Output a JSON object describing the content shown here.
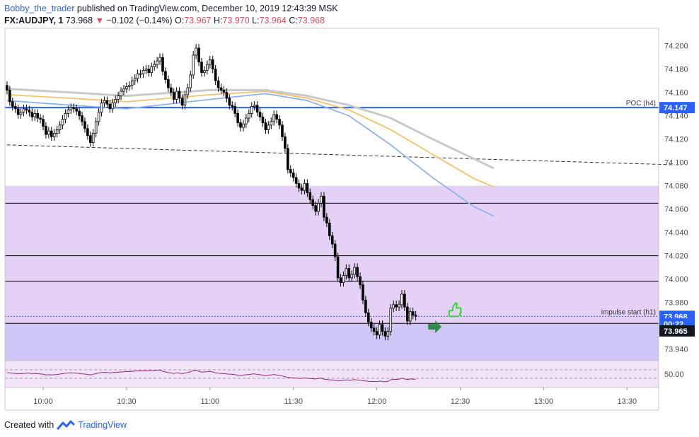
{
  "header": {
    "author": "Bobby_the_trader",
    "published": "published on TradingView.com, December 10, 2019 12:43:39 MSK",
    "symbol": "FX:AUDJPY, 1",
    "last": "73.968",
    "change": "−0.102 (−0.14%)",
    "o_label": "O:",
    "o_value": "73.967",
    "h_label": "H:",
    "h_value": "73.970",
    "l_label": "L:",
    "l_value": "73.964",
    "c_label": "C:",
    "c_value": "73.968"
  },
  "footer": {
    "created_with": "Created with",
    "brand": "TradingView"
  },
  "colors": {
    "up": "#ffffff",
    "down": "#000000",
    "wick": "#000000",
    "poc": "#2962ff",
    "zone": "#e0c8f5",
    "zone_lower": "#cbc4f5",
    "ma_grey": "#c9c9c9",
    "ma_orange": "#f5c26b",
    "ma_blue": "#8fb3ee",
    "rsi": "#8a2b7a",
    "tag_blue": "#2962ff",
    "tag_dark": "#131722",
    "thumb": "#35d82e",
    "arrow": "#2e8b4a"
  },
  "chart_data": {
    "type": "candlestick",
    "symbol": "FX:AUDJPY",
    "interval": "1",
    "ylim": [
      73.93,
      74.215
    ],
    "y_ticks": [
      "74.200",
      "74.180",
      "74.160",
      "74.140",
      "74.120",
      "74.100",
      "74.080",
      "74.060",
      "74.040",
      "74.020",
      "74.000",
      "73.980",
      "73.960",
      "73.940"
    ],
    "x_ticks": [
      {
        "label": "10:00",
        "min": 0
      },
      {
        "label": "10:30",
        "min": 30
      },
      {
        "label": "11:00",
        "min": 60
      },
      {
        "label": "11:30",
        "min": 90
      },
      {
        "label": "12:00",
        "min": 120
      },
      {
        "label": "12:30",
        "min": 150
      },
      {
        "label": "13:00",
        "min": 180
      },
      {
        "label": "13:30",
        "min": 210
      }
    ],
    "start_min": -13,
    "closes": [
      74.162,
      74.152,
      74.148,
      74.146,
      74.141,
      74.143,
      74.146,
      74.145,
      74.143,
      74.139,
      74.142,
      74.138,
      74.137,
      74.131,
      74.124,
      74.127,
      74.122,
      74.125,
      74.128,
      74.132,
      74.137,
      74.142,
      74.145,
      74.147,
      74.146,
      74.144,
      74.14,
      74.135,
      74.129,
      74.123,
      74.117,
      74.125,
      74.135,
      74.143,
      74.151,
      74.153,
      74.15,
      74.146,
      74.151,
      74.154,
      74.157,
      74.161,
      74.163,
      74.165,
      74.166,
      74.17,
      74.172,
      74.176,
      74.176,
      74.179,
      74.18,
      74.177,
      74.182,
      74.184,
      74.187,
      74.19,
      74.178,
      74.171,
      74.164,
      74.16,
      74.154,
      74.161,
      74.155,
      74.149,
      74.158,
      74.164,
      74.175,
      74.192,
      74.198,
      74.186,
      74.177,
      74.179,
      74.184,
      74.188,
      74.18,
      74.17,
      74.164,
      74.162,
      74.16,
      74.155,
      74.149,
      74.148,
      74.142,
      74.134,
      74.13,
      74.133,
      74.138,
      74.142,
      74.148,
      74.149,
      74.143,
      74.139,
      74.134,
      74.128,
      74.132,
      74.135,
      74.141,
      74.137,
      74.132,
      74.122,
      74.112,
      74.094,
      74.091,
      74.087,
      74.082,
      74.078,
      74.076,
      74.082,
      74.074,
      74.068,
      74.063,
      74.058,
      74.065,
      74.071,
      74.053,
      74.048,
      74.037,
      74.03,
      74.019,
      74.001,
      73.997,
      74.003,
      74.009,
      74.001,
      74.004,
      74.01,
      74.002,
      73.995,
      73.982,
      73.971,
      73.963,
      73.958,
      73.955,
      73.952,
      73.961,
      73.955,
      73.951,
      73.955,
      73.975,
      73.978,
      73.976,
      73.978,
      73.987,
      73.976,
      73.964,
      73.972,
      73.969,
      73.968
    ],
    "levels": [
      {
        "name": "POC (h4)",
        "price": 74.147,
        "kind": "poc"
      },
      {
        "name": "impulse start (h1)",
        "price": 73.968,
        "kind": "dotted"
      },
      {
        "price": 74.065,
        "kind": "line"
      },
      {
        "price": 74.02,
        "kind": "line"
      },
      {
        "price": 73.998,
        "kind": "line"
      },
      {
        "price": 73.962,
        "kind": "line"
      },
      {
        "price": 73.926,
        "kind": "line"
      }
    ],
    "zones": [
      {
        "from": 74.08,
        "to": 73.926,
        "kind": "purple"
      },
      {
        "from": 73.962,
        "to": 73.926,
        "kind": "blue"
      }
    ],
    "trendline": [
      {
        "min": -13,
        "price": 74.115
      },
      {
        "min": 226,
        "price": 74.098
      }
    ],
    "moving_averages": [
      {
        "color": "grey",
        "points": [
          [
            -13,
            74.163
          ],
          [
            10,
            74.16
          ],
          [
            30,
            74.157
          ],
          [
            60,
            74.162
          ],
          [
            80,
            74.162
          ],
          [
            95,
            74.157
          ],
          [
            110,
            74.149
          ],
          [
            125,
            74.138
          ],
          [
            140,
            74.12
          ],
          [
            155,
            74.103
          ],
          [
            162,
            74.095
          ]
        ]
      },
      {
        "color": "orange",
        "points": [
          [
            -13,
            74.158
          ],
          [
            10,
            74.155
          ],
          [
            30,
            74.152
          ],
          [
            60,
            74.158
          ],
          [
            80,
            74.161
          ],
          [
            95,
            74.155
          ],
          [
            110,
            74.145
          ],
          [
            125,
            74.128
          ],
          [
            140,
            74.107
          ],
          [
            155,
            74.086
          ],
          [
            162,
            74.079
          ]
        ]
      },
      {
        "color": "blue",
        "points": [
          [
            -13,
            74.153
          ],
          [
            10,
            74.149
          ],
          [
            30,
            74.146
          ],
          [
            60,
            74.154
          ],
          [
            80,
            74.159
          ],
          [
            95,
            74.153
          ],
          [
            110,
            74.14
          ],
          [
            125,
            74.115
          ],
          [
            140,
            74.087
          ],
          [
            155,
            74.062
          ],
          [
            162,
            74.054
          ]
        ]
      }
    ],
    "rsi": {
      "ylabel": "50.00",
      "values": [
        57,
        55,
        54,
        53,
        52,
        52,
        53,
        54,
        54,
        52,
        53,
        52,
        51,
        49,
        46,
        47,
        46,
        47,
        48,
        50,
        52,
        54,
        55,
        56,
        55,
        54,
        53,
        51,
        50,
        48,
        46,
        49,
        52,
        55,
        57,
        58,
        57,
        56,
        57,
        58,
        59,
        60,
        61,
        62,
        62,
        63,
        64,
        65,
        65,
        66,
        66,
        65,
        66,
        67,
        68,
        69,
        63,
        60,
        57,
        55,
        53,
        56,
        54,
        52,
        55,
        57,
        61,
        66,
        68,
        63,
        59,
        60,
        61,
        63,
        60,
        56,
        54,
        53,
        52,
        51,
        49,
        49,
        47,
        45,
        44,
        45,
        47,
        48,
        50,
        51,
        48,
        47,
        45,
        43,
        45,
        46,
        48,
        46,
        44,
        41,
        38,
        34,
        33,
        32,
        31,
        30,
        30,
        32,
        30,
        29,
        28,
        27,
        29,
        31,
        26,
        25,
        23,
        22,
        21,
        19,
        19,
        21,
        23,
        21,
        22,
        24,
        22,
        21,
        19,
        17,
        16,
        15,
        15,
        14,
        17,
        15,
        14,
        16,
        23,
        25,
        25,
        26,
        31,
        27,
        24,
        27,
        26,
        26
      ]
    },
    "markers": [
      {
        "kind": "thumbs-up",
        "min": 144,
        "price": 73.971
      },
      {
        "kind": "arrow-right",
        "min": 141,
        "price": 73.959
      }
    ],
    "price_tags": [
      {
        "text": "74.147",
        "price": 74.147,
        "style": "blue"
      },
      {
        "text": "73.968",
        "price": 73.968,
        "style": "blue"
      },
      {
        "text": "00:22",
        "price": 73.9615,
        "style": "blue"
      },
      {
        "text": "73.965",
        "price": 73.9555,
        "style": "dark"
      }
    ],
    "annotations": [
      "POC (h4)",
      "impulse start (h1)"
    ]
  }
}
